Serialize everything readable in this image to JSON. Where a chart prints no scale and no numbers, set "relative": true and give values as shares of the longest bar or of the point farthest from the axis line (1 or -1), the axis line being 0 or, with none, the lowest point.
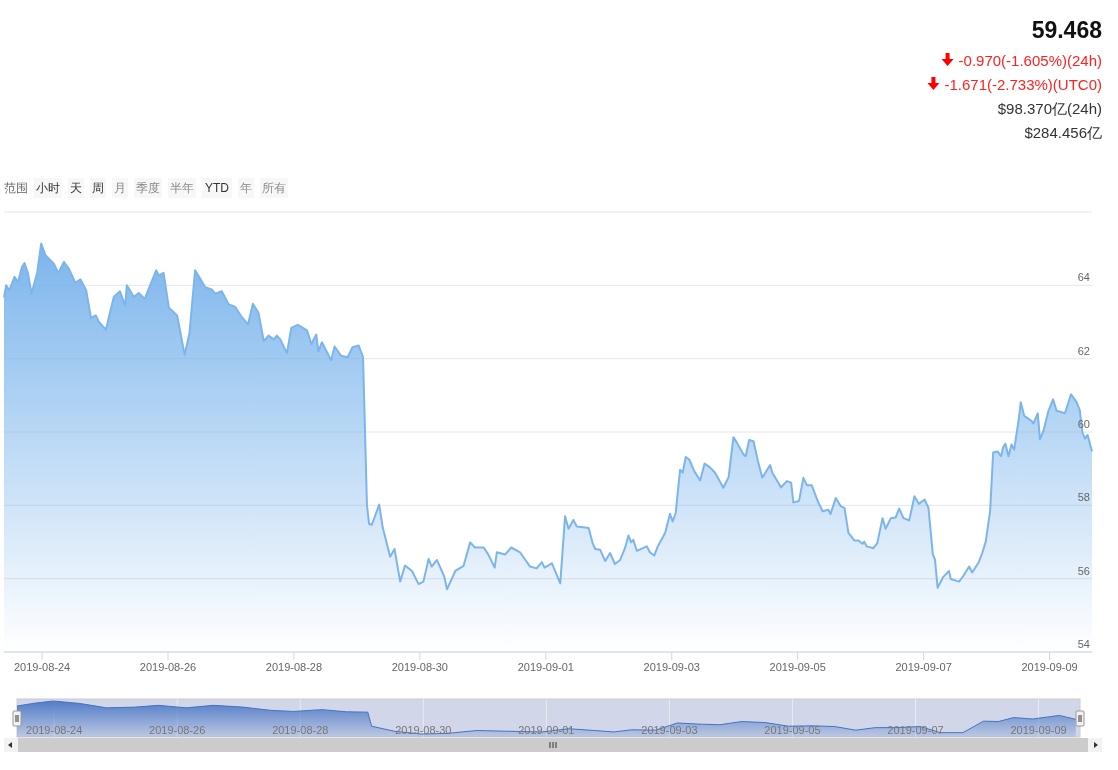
{
  "chart_data": [
    {
      "type": "area",
      "annotations": [
        "59.468",
        "-0.970(-1.605%)(24h)",
        "-1.671(-2.733%)(UTC0)",
        "$98.370亿(24h)",
        "$284.456亿",
        "范围",
        "小时",
        "天",
        "周",
        "月",
        "季度",
        "半年",
        "YTD",
        "年",
        "所有"
      ],
      "x": [
        "2019-08-23T09:30",
        "2019-08-23T10:20",
        "2019-08-23T11:30",
        "2019-08-23T13:30",
        "2019-08-23T14:50",
        "2019-08-23T16:20",
        "2019-08-23T17:20",
        "2019-08-23T18:40",
        "2019-08-23T20:00",
        "2019-08-23T22:10",
        "2019-08-23T23:40",
        "2019-08-24T01:20",
        "2019-08-24T04:30",
        "2019-08-24T06:10",
        "2019-08-24T08:20",
        "2019-08-24T10:10",
        "2019-08-24T12:40",
        "2019-08-24T14:40",
        "2019-08-24T16:50",
        "2019-08-24T18:40",
        "2019-08-24T20:30",
        "2019-08-24T21:40",
        "2019-08-25T00:20",
        "2019-08-25T03:20",
        "2019-08-25T05:40",
        "2019-08-25T07:40",
        "2019-08-25T08:20",
        "2019-08-25T11:00",
        "2019-08-25T12:50",
        "2019-08-25T15:10",
        "2019-08-25T16:40",
        "2019-08-25T19:30",
        "2019-08-25T20:30",
        "2019-08-25T22:20",
        "2019-08-26T00:20",
        "2019-08-26T03:30",
        "2019-08-26T06:20",
        "2019-08-26T08:10",
        "2019-08-26T10:20",
        "2019-08-26T12:20",
        "2019-08-26T14:10",
        "2019-08-26T16:50",
        "2019-08-26T18:00",
        "2019-08-26T20:30",
        "2019-08-26T23:10",
        "2019-08-27T01:40",
        "2019-08-27T04:10",
        "2019-08-27T06:30",
        "2019-08-27T08:20",
        "2019-08-27T10:30",
        "2019-08-27T12:30",
        "2019-08-27T14:20",
        "2019-08-27T16:20",
        "2019-08-27T17:30",
        "2019-08-27T18:50",
        "2019-08-27T21:20",
        "2019-08-27T23:00",
        "2019-08-28T01:30",
        "2019-08-28T05:00",
        "2019-08-28T06:40",
        "2019-08-28T08:30",
        "2019-08-28T09:20",
        "2019-08-28T10:40",
        "2019-08-28T14:10",
        "2019-08-28T15:30",
        "2019-08-28T18:00",
        "2019-08-28T20:30",
        "2019-08-28T22:20",
        "2019-08-29T00:40",
        "2019-08-29T02:20",
        "2019-08-29T03:50",
        "2019-08-29T04:40",
        "2019-08-29T05:40",
        "2019-08-29T08:30",
        "2019-08-29T09:50",
        "2019-08-29T12:40",
        "2019-08-29T14:20",
        "2019-08-29T16:30",
        "2019-08-29T18:20",
        "2019-08-29T21:00",
        "2019-08-29T23:30",
        "2019-08-30T01:20",
        "2019-08-30T03:20",
        "2019-08-30T04:30",
        "2019-08-30T06:30",
        "2019-08-30T09:20",
        "2019-08-30T10:20",
        "2019-08-30T13:30",
        "2019-08-30T16:40",
        "2019-08-30T19:10",
        "2019-08-30T21:00",
        "2019-08-31T00:20",
        "2019-08-31T02:10",
        "2019-08-31T04:30",
        "2019-08-31T05:20",
        "2019-08-31T08:30",
        "2019-08-31T10:50",
        "2019-08-31T14:10",
        "2019-08-31T18:00",
        "2019-08-31T20:30",
        "2019-08-31T22:30",
        "2019-08-31T23:30",
        "2019-09-01T02:20",
        "2019-09-01T05:30",
        "2019-09-01T07:20",
        "2019-09-01T08:40",
        "2019-09-01T10:30",
        "2019-09-01T11:50",
        "2019-09-01T16:20",
        "2019-09-01T17:50",
        "2019-09-01T18:50",
        "2019-09-01T20:40",
        "2019-09-01T22:40",
        "2019-09-02T00:30",
        "2019-09-02T02:20",
        "2019-09-02T04:20",
        "2019-09-02T06:10",
        "2019-09-02T07:30",
        "2019-09-02T08:30",
        "2019-09-02T09:20",
        "2019-09-02T10:40",
        "2019-09-02T14:30",
        "2019-09-02T15:40",
        "2019-09-02T17:20",
        "2019-09-02T18:40",
        "2019-09-02T21:30",
        "2019-09-02T23:20",
        "2019-09-03T00:20",
        "2019-09-03T01:30",
        "2019-09-03T03:10",
        "2019-09-03T04:10",
        "2019-09-03T05:20",
        "2019-09-03T06:40",
        "2019-09-03T08:40",
        "2019-09-03T10:50",
        "2019-09-03T12:30",
        "2019-09-03T14:40",
        "2019-09-03T16:30",
        "2019-09-03T18:50",
        "2019-09-03T19:40",
        "2019-09-03T21:40",
        "2019-09-03T23:30",
        "2019-09-04T00:50",
        "2019-09-04T03:20",
        "2019-09-04T04:10",
        "2019-09-04T05:30",
        "2019-09-04T07:10",
        "2019-09-04T08:50",
        "2019-09-04T10:30",
        "2019-09-04T13:30",
        "2019-09-04T14:20",
        "2019-09-04T17:40",
        "2019-09-04T19:50",
        "2019-09-04T21:30",
        "2019-09-04T22:20",
        "2019-09-05T00:30",
        "2019-09-05T02:10",
        "2019-09-05T03:30",
        "2019-09-05T05:20",
        "2019-09-05T07:40",
        "2019-09-05T09:30",
        "2019-09-05T11:40",
        "2019-09-05T12:30",
        "2019-09-05T14:30",
        "2019-09-05T16:30",
        "2019-09-05T17:50",
        "2019-09-05T19:20",
        "2019-09-05T21:40",
        "2019-09-05T23:10",
        "2019-09-06T00:40",
        "2019-09-06T01:20",
        "2019-09-06T02:20",
        "2019-09-06T04:50",
        "2019-09-06T06:20",
        "2019-09-06T08:20",
        "2019-09-06T09:30",
        "2019-09-06T11:30",
        "2019-09-06T13:20",
        "2019-09-06T14:40",
        "2019-09-06T16:20",
        "2019-09-06T18:30",
        "2019-09-06T20:30",
        "2019-09-06T22:10",
        "2019-09-07T00:20",
        "2019-09-07T01:50",
        "2019-09-07T03:30",
        "2019-09-07T04:20",
        "2019-09-07T05:20",
        "2019-09-07T07:30",
        "2019-09-07T09:40",
        "2019-09-07T10:20",
        "2019-09-07T13:30",
        "2019-09-07T15:10",
        "2019-09-07T17:20",
        "2019-09-07T18:30",
        "2019-09-07T21:00",
        "2019-09-07T22:20",
        "2019-09-07T23:40",
        "2019-09-08T01:20",
        "2019-09-08T02:30",
        "2019-09-08T04:10",
        "2019-09-08T05:30",
        "2019-09-08T06:20",
        "2019-09-08T07:10",
        "2019-09-08T08:20",
        "2019-09-08T09:30",
        "2019-09-08T10:30",
        "2019-09-08T12:20",
        "2019-09-08T13:00",
        "2019-09-08T14:20",
        "2019-09-08T17:10",
        "2019-09-08T17:50",
        "2019-09-08T19:30",
        "2019-09-08T20:20",
        "2019-09-08T21:40",
        "2019-09-08T23:30",
        "2019-09-09T01:20",
        "2019-09-09T02:40",
        "2019-09-09T05:50",
        "2019-09-09T08:10",
        "2019-09-09T10:20",
        "2019-09-09T11:30",
        "2019-09-09T12:30",
        "2019-09-09T13:30",
        "2019-09-09T14:30",
        "2019-09-09T16:10"
      ],
      "series": [
        {
          "color": "#7cb5ec",
          "values": [
            63.67,
            64.0,
            63.86,
            64.23,
            64.09,
            64.5,
            64.61,
            64.32,
            63.77,
            64.36,
            65.14,
            64.82,
            64.59,
            64.34,
            64.64,
            64.46,
            64.07,
            64.16,
            63.86,
            63.11,
            63.18,
            63.0,
            62.79,
            63.68,
            63.84,
            63.45,
            64.0,
            63.68,
            63.79,
            63.63,
            63.91,
            64.41,
            64.27,
            64.34,
            63.39,
            63.18,
            62.11,
            62.68,
            64.41,
            64.18,
            63.95,
            63.88,
            63.77,
            63.84,
            63.48,
            63.41,
            63.13,
            62.93,
            63.5,
            63.25,
            62.48,
            62.63,
            62.52,
            62.63,
            62.52,
            62.15,
            62.84,
            62.92,
            62.77,
            62.4,
            62.66,
            62.2,
            62.45,
            61.96,
            62.33,
            62.08,
            62.04,
            62.31,
            62.36,
            62.04,
            58.0,
            57.49,
            57.47,
            58.02,
            57.4,
            56.6,
            56.81,
            55.92,
            56.36,
            56.21,
            55.85,
            55.92,
            56.54,
            56.33,
            56.51,
            56.05,
            55.71,
            56.21,
            56.35,
            56.99,
            56.85,
            56.85,
            56.65,
            56.3,
            56.72,
            56.66,
            56.85,
            56.72,
            56.33,
            56.28,
            56.45,
            56.3,
            56.42,
            55.87,
            57.7,
            57.36,
            57.6,
            57.42,
            57.38,
            56.97,
            56.81,
            56.79,
            56.48,
            56.7,
            56.4,
            56.51,
            56.83,
            57.18,
            56.99,
            57.06,
            56.76,
            56.88,
            56.72,
            56.63,
            56.88,
            57.25,
            57.77,
            57.56,
            57.79,
            58.97,
            58.89,
            59.32,
            59.25,
            58.92,
            58.68,
            59.14,
            59.03,
            58.89,
            58.59,
            58.48,
            58.77,
            59.86,
            59.71,
            59.39,
            59.34,
            59.78,
            59.75,
            59.21,
            58.75,
            59.1,
            58.89,
            58.49,
            58.66,
            58.62,
            58.08,
            58.12,
            58.75,
            58.55,
            58.55,
            58.11,
            57.84,
            57.88,
            57.76,
            58.2,
            57.97,
            57.93,
            57.25,
            57.04,
            57.04,
            56.95,
            57.01,
            56.88,
            56.83,
            56.97,
            57.65,
            57.36,
            57.65,
            57.67,
            57.91,
            57.65,
            57.59,
            58.25,
            58.04,
            58.16,
            57.93,
            56.67,
            56.51,
            55.75,
            56.05,
            56.21,
            55.99,
            55.92,
            56.08,
            56.33,
            56.17,
            56.45,
            56.7,
            57.01,
            57.84,
            59.44,
            59.47,
            59.34,
            59.59,
            59.68,
            59.34,
            59.66,
            59.52,
            60.39,
            60.81,
            60.44,
            60.3,
            60.23,
            60.51,
            59.8,
            60.03,
            60.56,
            60.89,
            60.58,
            60.51,
            61.03,
            60.81,
            60.6,
            59.99,
            59.82,
            59.92,
            59.47
          ]
        }
      ],
      "xlim": [
        "2019-08-23T09:30",
        "2019-09-09T16:10"
      ],
      "xticks": [
        "2019-08-24",
        "2019-08-26",
        "2019-08-28",
        "2019-08-30",
        "2019-09-01",
        "2019-09-03",
        "2019-09-05",
        "2019-09-07",
        "2019-09-09"
      ],
      "ylim": [
        54,
        66
      ],
      "yticks": [
        54,
        56,
        58,
        60,
        62,
        64,
        {
          "value": 66,
          "label": null
        }
      ],
      "grid": "y"
    },
    {
      "type": "area",
      "relative": true,
      "tick_labels": "x",
      "grid": "x",
      "x": [
        "2019-08-23T09:30",
        "2019-08-23T16:20",
        "2019-08-23T23:40",
        "2019-08-24T10:10",
        "2019-08-24T20:30",
        "2019-08-25T07:40",
        "2019-08-25T16:40",
        "2019-08-26T03:30",
        "2019-08-26T14:10",
        "2019-08-27T01:40",
        "2019-08-27T12:30",
        "2019-08-27T21:20",
        "2019-08-28T08:30",
        "2019-08-28T18:00",
        "2019-08-29T02:20",
        "2019-08-29T03:50",
        "2019-08-29T12:40",
        "2019-08-29T23:30",
        "2019-08-30T09:20",
        "2019-08-30T21:00",
        "2019-08-31T08:30",
        "2019-08-31T22:30",
        "2019-09-01T08:40",
        "2019-09-01T18:50",
        "2019-09-02T02:20",
        "2019-09-02T09:20",
        "2019-09-02T18:40",
        "2019-09-03T03:10",
        "2019-09-03T10:50",
        "2019-09-03T19:40",
        "2019-09-04T04:10",
        "2019-09-04T13:30",
        "2019-09-04T22:20",
        "2019-09-05T07:40",
        "2019-09-05T16:30",
        "2019-09-06T00:40",
        "2019-09-06T08:20",
        "2019-09-06T16:20",
        "2019-09-07T01:50",
        "2019-09-07T09:40",
        "2019-09-07T18:30",
        "2019-09-08T02:30",
        "2019-09-08T08:20",
        "2019-09-08T14:20",
        "2019-09-08T21:40",
        "2019-09-09T08:10",
        "2019-09-09T14:30"
      ],
      "series": [
        {
          "color": "#4572c4",
          "values": [
            0.86,
            0.94,
            1,
            0.93,
            0.81,
            0.83,
            0.88,
            0.81,
            0.88,
            0.83,
            0.74,
            0.71,
            0.76,
            0.7,
            0.69,
            0.3,
            0.16,
            0.08,
            0.1,
            0.18,
            0.16,
            0.14,
            0.23,
            0.18,
            0.14,
            0.2,
            0.19,
            0.39,
            0.36,
            0.34,
            0.43,
            0.4,
            0.3,
            0.31,
            0.29,
            0.19,
            0.26,
            0.26,
            0.29,
            0.12,
            0.12,
            0.44,
            0.43,
            0.54,
            0.5,
            0.6,
            0.49
          ]
        }
      ],
      "xlim": [
        "2019-08-23T09:30",
        "2019-09-09T16:10"
      ],
      "xticks": [
        "2019-08-24",
        "2019-08-26",
        "2019-08-28",
        "2019-08-30",
        "2019-09-01",
        "2019-09-03",
        "2019-09-05",
        "2019-09-07",
        "2019-09-09"
      ]
    }
  ]
}
